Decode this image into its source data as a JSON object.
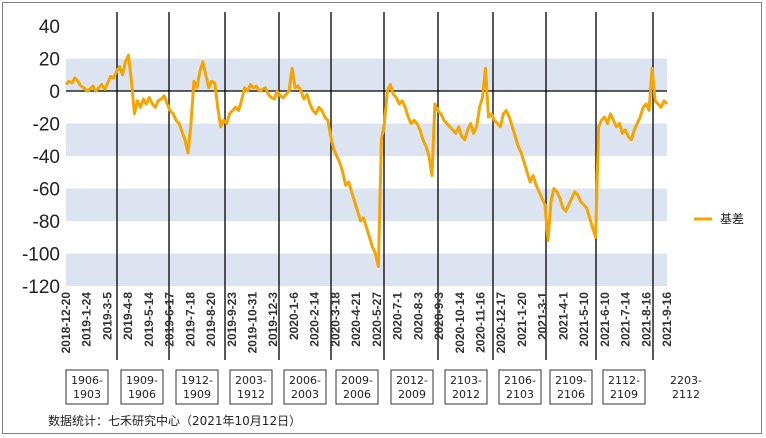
{
  "chart_data": {
    "type": "line",
    "title": "",
    "xlabel": "",
    "ylabel": "",
    "ylim": [
      -120,
      40
    ],
    "yticks": [
      40,
      20,
      0,
      -20,
      -40,
      -60,
      -80,
      -100,
      -120
    ],
    "xticks": [
      "2018-12-20",
      "2019-1-24",
      "2019-3-5",
      "2019-4-8",
      "2019-5-14",
      "2019-6-17",
      "2019-7-18",
      "2019-8-20",
      "2019-9-23",
      "2019-10-31",
      "2019-12-3",
      "2020-1-6",
      "2020-2-14",
      "2020-3-18",
      "2020-4-21",
      "2020-5-27",
      "2020-7-1",
      "2020-8-3",
      "2020-9-3",
      "2020-10-14",
      "2020-11-16",
      "2020-12-17",
      "2021-1-20",
      "2021-3-1",
      "2021-4-1",
      "2021-5-10",
      "2021-6-10",
      "2021-7-14",
      "2021-8-16",
      "2021-9-16"
    ],
    "grid": "alternating horizontal bands",
    "legend_position": "right",
    "contract_labels": [
      "1906-\n1903",
      "1909-\n1906",
      "1912-\n1909",
      "2003-\n1912",
      "2006-\n2003",
      "2009-\n2006",
      "2012-\n2009",
      "2103-\n2012",
      "2106-\n2103",
      "2109-\n2106",
      "2112-\n2109",
      "2203-\n2112"
    ],
    "series": [
      {
        "name": "基差",
        "color": "#f5a500",
        "values": [
          4,
          6,
          5,
          8,
          6,
          3,
          2,
          0,
          1,
          3,
          0,
          2,
          4,
          1,
          5,
          9,
          8,
          12,
          15,
          10,
          18,
          22,
          6,
          -14,
          -6,
          -10,
          -5,
          -8,
          -4,
          -8,
          -10,
          -6,
          -5,
          -3,
          -8,
          -12,
          -14,
          -18,
          -20,
          -25,
          -30,
          -38,
          -20,
          6,
          2,
          12,
          18,
          10,
          2,
          6,
          5,
          -10,
          -22,
          -18,
          -20,
          -14,
          -12,
          -10,
          -12,
          -6,
          2,
          0,
          4,
          2,
          3,
          0,
          1,
          2,
          -2,
          -4,
          -5,
          0,
          -3,
          -4,
          -2,
          0,
          14,
          2,
          3,
          0,
          -5,
          -2,
          -8,
          -12,
          -14,
          -10,
          -12,
          -16,
          -18,
          -28,
          -36,
          -40,
          -44,
          -50,
          -58,
          -56,
          -62,
          -68,
          -74,
          -80,
          -78,
          -84,
          -90,
          -96,
          -100,
          -108,
          -30,
          -20,
          0,
          4,
          -2,
          -4,
          -8,
          -6,
          -10,
          -16,
          -20,
          -18,
          -20,
          -24,
          -30,
          -34,
          -40,
          -52,
          -8,
          -12,
          -14,
          -18,
          -20,
          -22,
          -24,
          -26,
          -22,
          -28,
          -30,
          -24,
          -20,
          -26,
          -22,
          -10,
          -4,
          14,
          -16,
          -14,
          -18,
          -20,
          -22,
          -14,
          -12,
          -16,
          -22,
          -28,
          -34,
          -38,
          -44,
          -50,
          -56,
          -52,
          -58,
          -62,
          -66,
          -70,
          -92,
          -68,
          -60,
          -62,
          -66,
          -72,
          -74,
          -70,
          -66,
          -62,
          -64,
          -68,
          -70,
          -72,
          -78,
          -84,
          -90,
          -22,
          -18,
          -16,
          -20,
          -14,
          -18,
          -22,
          -20,
          -26,
          -24,
          -28,
          -30,
          -24,
          -20,
          -16,
          -10,
          -8,
          -12,
          14,
          -6,
          -8,
          -10,
          -6,
          -8
        ]
      }
    ]
  },
  "legend": {
    "label": "基差"
  },
  "source": "数据统计：七禾研究中心（2021年10月12日）"
}
